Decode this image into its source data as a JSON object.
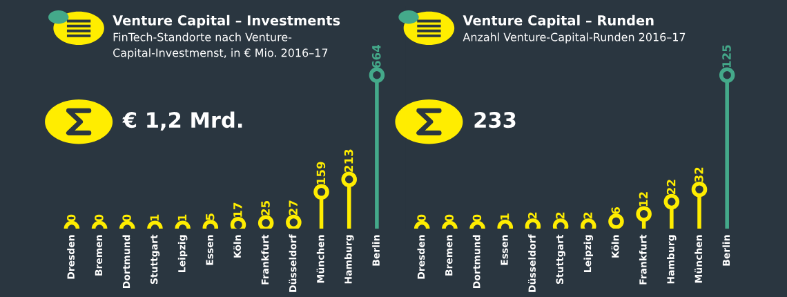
{
  "chart_data": [
    {
      "type": "lollipop",
      "title": "Venture Capital – Investments",
      "subtitle": "FinTech-Standorte nach Venture-\nCapital-Investmenst, in € Mio. 2016–17",
      "categories": [
        "Dresden",
        "Bremen",
        "Dortmund",
        "Stuttgart",
        "Leipzig",
        "Essen",
        "Köln",
        "Frankfurt",
        "Düsseldorf",
        "München",
        "Hamburg",
        "Berlin"
      ],
      "values": [
        0,
        0,
        0,
        1,
        1,
        5,
        17,
        25,
        27,
        159,
        213,
        664
      ],
      "colors": [
        "#ffed00",
        "#ffed00",
        "#ffed00",
        "#ffed00",
        "#ffed00",
        "#ffed00",
        "#ffed00",
        "#ffed00",
        "#ffed00",
        "#ffed00",
        "#ffed00",
        "#44a98a"
      ],
      "tick_labels": "x",
      "data_labels": true,
      "marker": "circle",
      "grid": false,
      "legend": false,
      "annotations": [
        "€ 1,2 Mrd."
      ]
    },
    {
      "type": "lollipop",
      "title": "Venture Capital – Runden",
      "subtitle": "Anzahl Venture-Capital-Runden 2016–17",
      "categories": [
        "Dresden",
        "Bremen",
        "Dortmund",
        "Essen",
        "Düsseldorf",
        "Stuttgart",
        "Leipzig",
        "Köln",
        "Frankfurt",
        "Hamburg",
        "München",
        "Berlin"
      ],
      "values": [
        0,
        0,
        0,
        1,
        2,
        2,
        2,
        6,
        12,
        22,
        32,
        125
      ],
      "colors": [
        "#ffed00",
        "#ffed00",
        "#ffed00",
        "#ffed00",
        "#ffed00",
        "#ffed00",
        "#ffed00",
        "#ffed00",
        "#ffed00",
        "#ffed00",
        "#ffed00",
        "#44a98a"
      ],
      "tick_labels": "x",
      "data_labels": true,
      "marker": "circle",
      "grid": false,
      "legend": false,
      "annotations": [
        "233"
      ]
    }
  ]
}
